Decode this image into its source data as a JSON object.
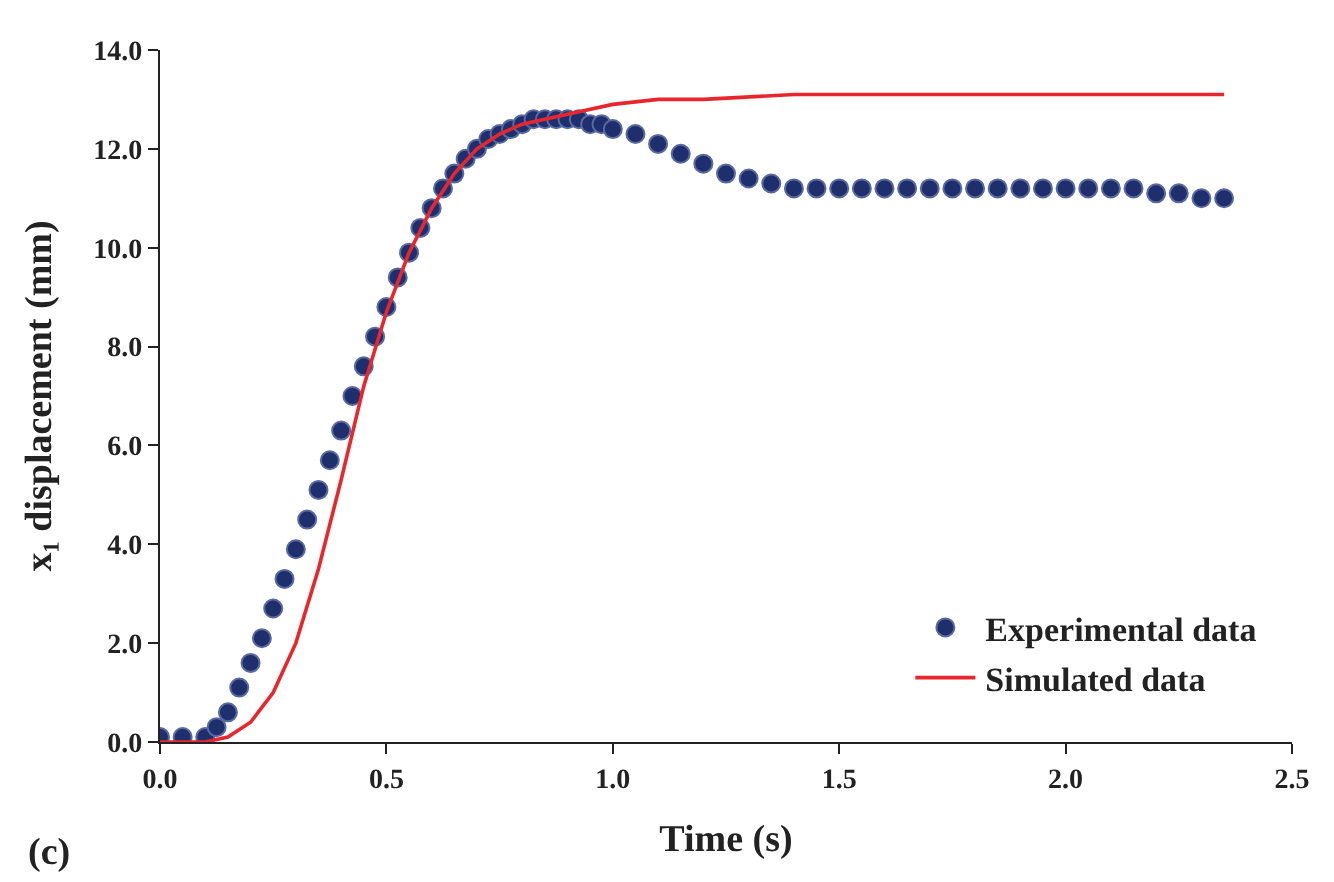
{
  "chart_data": {
    "type": "scatter",
    "xlabel": "Time (s)",
    "ylabel": "x₁ displacement (mm)",
    "annotations": [
      "(c)"
    ],
    "xlim": [
      0,
      2.5
    ],
    "ylim": [
      0,
      14
    ],
    "xticks": [
      {
        "value": 0,
        "label": "0.0"
      },
      {
        "value": 0.5,
        "label": "0.5"
      },
      {
        "value": 1,
        "label": "1.0"
      },
      {
        "value": 1.5,
        "label": "1.5"
      },
      {
        "value": 2,
        "label": "2.0"
      },
      {
        "value": 2.5,
        "label": "2.5"
      }
    ],
    "yticks": [
      {
        "value": 0,
        "label": "0.0"
      },
      {
        "value": 2,
        "label": "2.0"
      },
      {
        "value": 4,
        "label": "4.0"
      },
      {
        "value": 6,
        "label": "6.0"
      },
      {
        "value": 8,
        "label": "8.0"
      },
      {
        "value": 10,
        "label": "10.0"
      },
      {
        "value": 12,
        "label": "12.0"
      },
      {
        "value": 14,
        "label": "14.0"
      }
    ],
    "legend": "bottom right",
    "series": [
      {
        "name": "Experimental data",
        "marker": "circle",
        "color": "#1f2f6e",
        "x": [
          0,
          0.05,
          0.1,
          0.125,
          0.15,
          0.175,
          0.2,
          0.225,
          0.25,
          0.275,
          0.3,
          0.325,
          0.35,
          0.375,
          0.4,
          0.425,
          0.45,
          0.475,
          0.5,
          0.525,
          0.55,
          0.575,
          0.6,
          0.625,
          0.65,
          0.675,
          0.7,
          0.725,
          0.75,
          0.775,
          0.8,
          0.825,
          0.85,
          0.875,
          0.9,
          0.925,
          0.95,
          0.975,
          1.0,
          1.05,
          1.1,
          1.15,
          1.2,
          1.25,
          1.3,
          1.35,
          1.4,
          1.45,
          1.5,
          1.55,
          1.6,
          1.65,
          1.7,
          1.75,
          1.8,
          1.85,
          1.9,
          1.95,
          2.0,
          2.05,
          2.1,
          2.15,
          2.2,
          2.25,
          2.3,
          2.35
        ],
        "values": [
          0.1,
          0.1,
          0.1,
          0.3,
          0.6,
          1.1,
          1.6,
          2.1,
          2.7,
          3.3,
          3.9,
          4.5,
          5.1,
          5.7,
          6.3,
          7.0,
          7.6,
          8.2,
          8.8,
          9.4,
          9.9,
          10.4,
          10.8,
          11.2,
          11.5,
          11.8,
          12.0,
          12.2,
          12.3,
          12.4,
          12.5,
          12.6,
          12.6,
          12.6,
          12.6,
          12.6,
          12.5,
          12.5,
          12.4,
          12.3,
          12.1,
          11.9,
          11.7,
          11.5,
          11.4,
          11.3,
          11.2,
          11.2,
          11.2,
          11.2,
          11.2,
          11.2,
          11.2,
          11.2,
          11.2,
          11.2,
          11.2,
          11.2,
          11.2,
          11.2,
          11.2,
          11.2,
          11.1,
          11.1,
          11.0,
          11.0
        ]
      },
      {
        "name": "Simulated data",
        "type": "line",
        "marker": "none",
        "line_style": "solid",
        "color": "#e8262b",
        "x": [
          0,
          0.1,
          0.15,
          0.2,
          0.25,
          0.3,
          0.35,
          0.4,
          0.45,
          0.5,
          0.55,
          0.6,
          0.65,
          0.7,
          0.75,
          0.8,
          0.9,
          1.0,
          1.1,
          1.2,
          1.4,
          1.6,
          2.0,
          2.35
        ],
        "values": [
          0,
          0,
          0.1,
          0.4,
          1.0,
          2.0,
          3.5,
          5.3,
          7.2,
          8.7,
          9.9,
          10.8,
          11.5,
          12.0,
          12.3,
          12.5,
          12.7,
          12.9,
          13.0,
          13.0,
          13.1,
          13.1,
          13.1,
          13.1
        ]
      }
    ]
  }
}
